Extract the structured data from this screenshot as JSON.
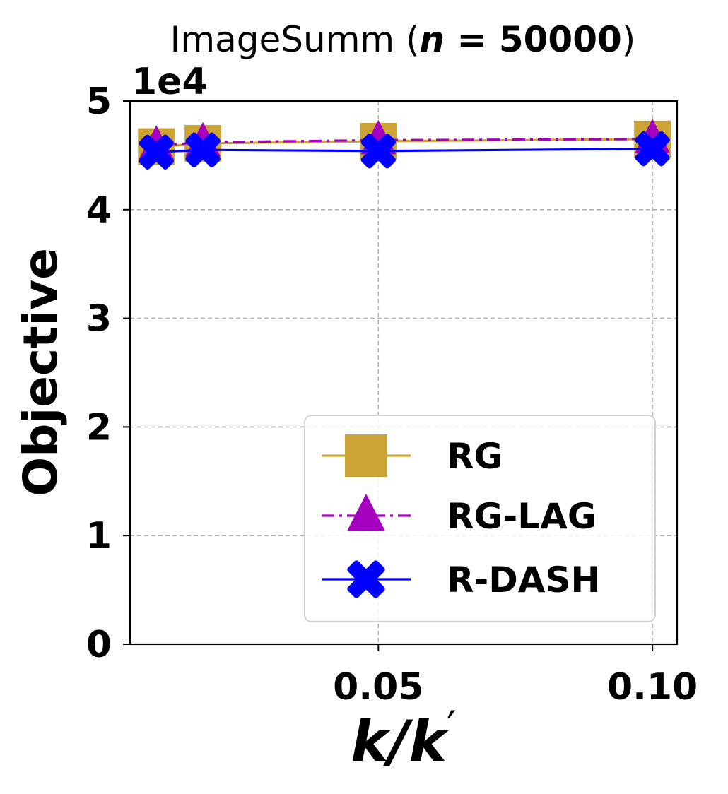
{
  "chart_data": {
    "type": "line",
    "title_prefix": "ImageSumm (",
    "title_var": "n",
    "title_eq": " = 50000",
    "title_suffix": ")",
    "xlabel_k": "k",
    "xlabel_slash": "/",
    "xlabel_kprime": "k",
    "xlabel_prime": "′",
    "ylabel": "Objective",
    "y_offset_label": "1e4",
    "x_ticks": [
      0.05,
      0.1
    ],
    "x_tick_labels": [
      "0.05",
      "0.10"
    ],
    "y_ticks": [
      0,
      1,
      2,
      3,
      4,
      5
    ],
    "y_tick_labels": [
      "0",
      "1",
      "2",
      "3",
      "4",
      "5"
    ],
    "xlim": [
      0.0047,
      0.1045
    ],
    "ylim": [
      0,
      5
    ],
    "y_scale": 10000,
    "grid": true,
    "legend_position": "lower-right",
    "x": [
      0.0095,
      0.018,
      0.05,
      0.1
    ],
    "series": [
      {
        "name": "RG",
        "values": [
          4.58,
          4.61,
          4.63,
          4.65
        ],
        "color": "#CCA436",
        "marker": "square",
        "linestyle": "solid"
      },
      {
        "name": "RG-LAG",
        "values": [
          4.59,
          4.62,
          4.64,
          4.65
        ],
        "color": "#A500BF",
        "marker": "triangle",
        "linestyle": "dashdot"
      },
      {
        "name": "R-DASH",
        "values": [
          4.53,
          4.55,
          4.54,
          4.56
        ],
        "color": "#0000FF",
        "marker": "x",
        "linestyle": "solid"
      }
    ]
  }
}
